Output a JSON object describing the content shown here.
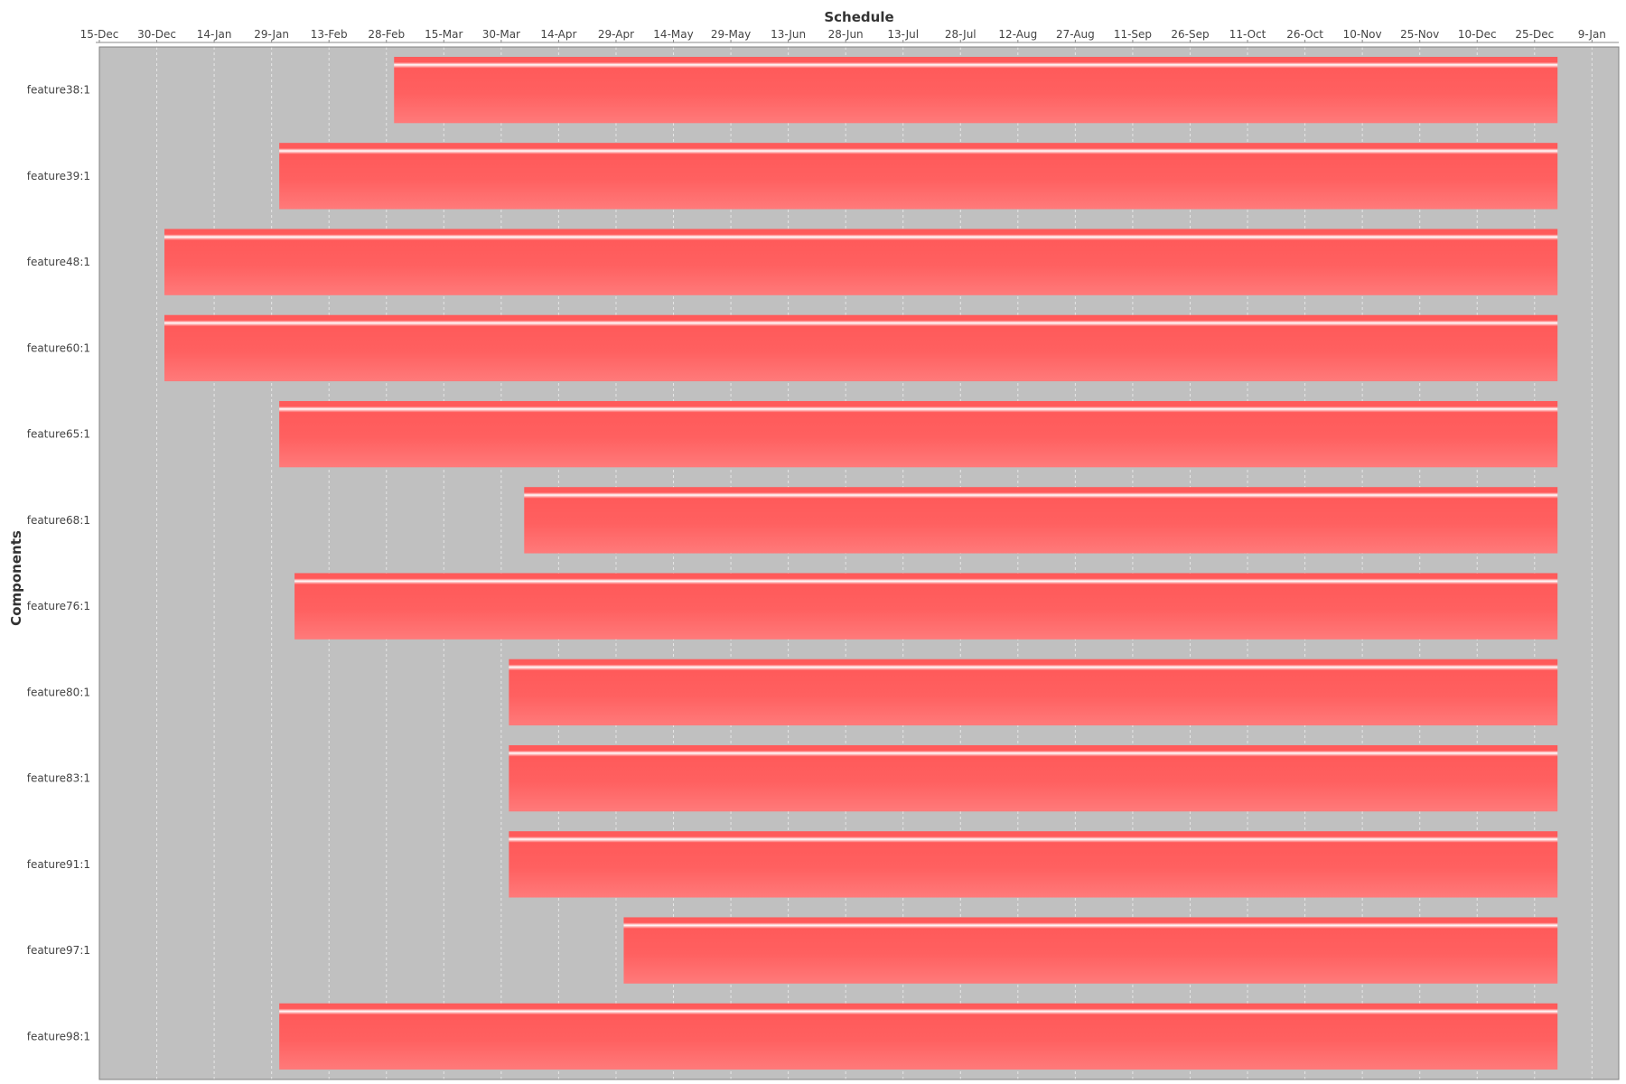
{
  "chart_data": {
    "type": "gantt",
    "title": "Schedule",
    "xlabel": "",
    "ylabel": "Components",
    "x_axis": {
      "position": "top",
      "range": [
        "2017-12-15",
        "2019-01-16"
      ],
      "ticks": [
        {
          "date": "2017-12-15",
          "label": "15-Dec"
        },
        {
          "date": "2017-12-30",
          "label": "30-Dec"
        },
        {
          "date": "2018-01-14",
          "label": "14-Jan"
        },
        {
          "date": "2018-01-29",
          "label": "29-Jan"
        },
        {
          "date": "2018-02-13",
          "label": "13-Feb"
        },
        {
          "date": "2018-02-28",
          "label": "28-Feb"
        },
        {
          "date": "2018-03-15",
          "label": "15-Mar"
        },
        {
          "date": "2018-03-30",
          "label": "30-Mar"
        },
        {
          "date": "2018-04-14",
          "label": "14-Apr"
        },
        {
          "date": "2018-04-29",
          "label": "29-Apr"
        },
        {
          "date": "2018-05-14",
          "label": "14-May"
        },
        {
          "date": "2018-05-29",
          "label": "29-May"
        },
        {
          "date": "2018-06-13",
          "label": "13-Jun"
        },
        {
          "date": "2018-06-28",
          "label": "28-Jun"
        },
        {
          "date": "2018-07-13",
          "label": "13-Jul"
        },
        {
          "date": "2018-07-28",
          "label": "28-Jul"
        },
        {
          "date": "2018-08-12",
          "label": "12-Aug"
        },
        {
          "date": "2018-08-27",
          "label": "27-Aug"
        },
        {
          "date": "2018-09-11",
          "label": "11-Sep"
        },
        {
          "date": "2018-09-26",
          "label": "26-Sep"
        },
        {
          "date": "2018-10-11",
          "label": "11-Oct"
        },
        {
          "date": "2018-10-26",
          "label": "26-Oct"
        },
        {
          "date": "2018-11-10",
          "label": "10-Nov"
        },
        {
          "date": "2018-11-25",
          "label": "25-Nov"
        },
        {
          "date": "2018-12-10",
          "label": "10-Dec"
        },
        {
          "date": "2018-12-25",
          "label": "25-Dec"
        },
        {
          "date": "2019-01-09",
          "label": "9-Jan"
        }
      ]
    },
    "grid": true,
    "legend": "none",
    "colors": {
      "plot_background": "#c0c0c0",
      "bar": "#ff5a5a",
      "bar_light": "#ff7a7a",
      "bar_highlight": "#ffffff",
      "grid": "#e6e6e6"
    },
    "tasks": [
      {
        "name": "feature38:1",
        "start": "2018-03-02",
        "end": "2018-12-31"
      },
      {
        "name": "feature39:1",
        "start": "2018-01-31",
        "end": "2018-12-31"
      },
      {
        "name": "feature48:1",
        "start": "2018-01-01",
        "end": "2018-12-31"
      },
      {
        "name": "feature60:1",
        "start": "2018-01-01",
        "end": "2018-12-31"
      },
      {
        "name": "feature65:1",
        "start": "2018-01-31",
        "end": "2018-12-31"
      },
      {
        "name": "feature68:1",
        "start": "2018-04-05",
        "end": "2018-12-31"
      },
      {
        "name": "feature76:1",
        "start": "2018-02-04",
        "end": "2018-12-31"
      },
      {
        "name": "feature80:1",
        "start": "2018-04-01",
        "end": "2018-12-31"
      },
      {
        "name": "feature83:1",
        "start": "2018-04-01",
        "end": "2018-12-31"
      },
      {
        "name": "feature91:1",
        "start": "2018-04-01",
        "end": "2018-12-31"
      },
      {
        "name": "feature97:1",
        "start": "2018-05-01",
        "end": "2018-12-31"
      },
      {
        "name": "feature98:1",
        "start": "2018-01-31",
        "end": "2018-12-31"
      }
    ]
  }
}
